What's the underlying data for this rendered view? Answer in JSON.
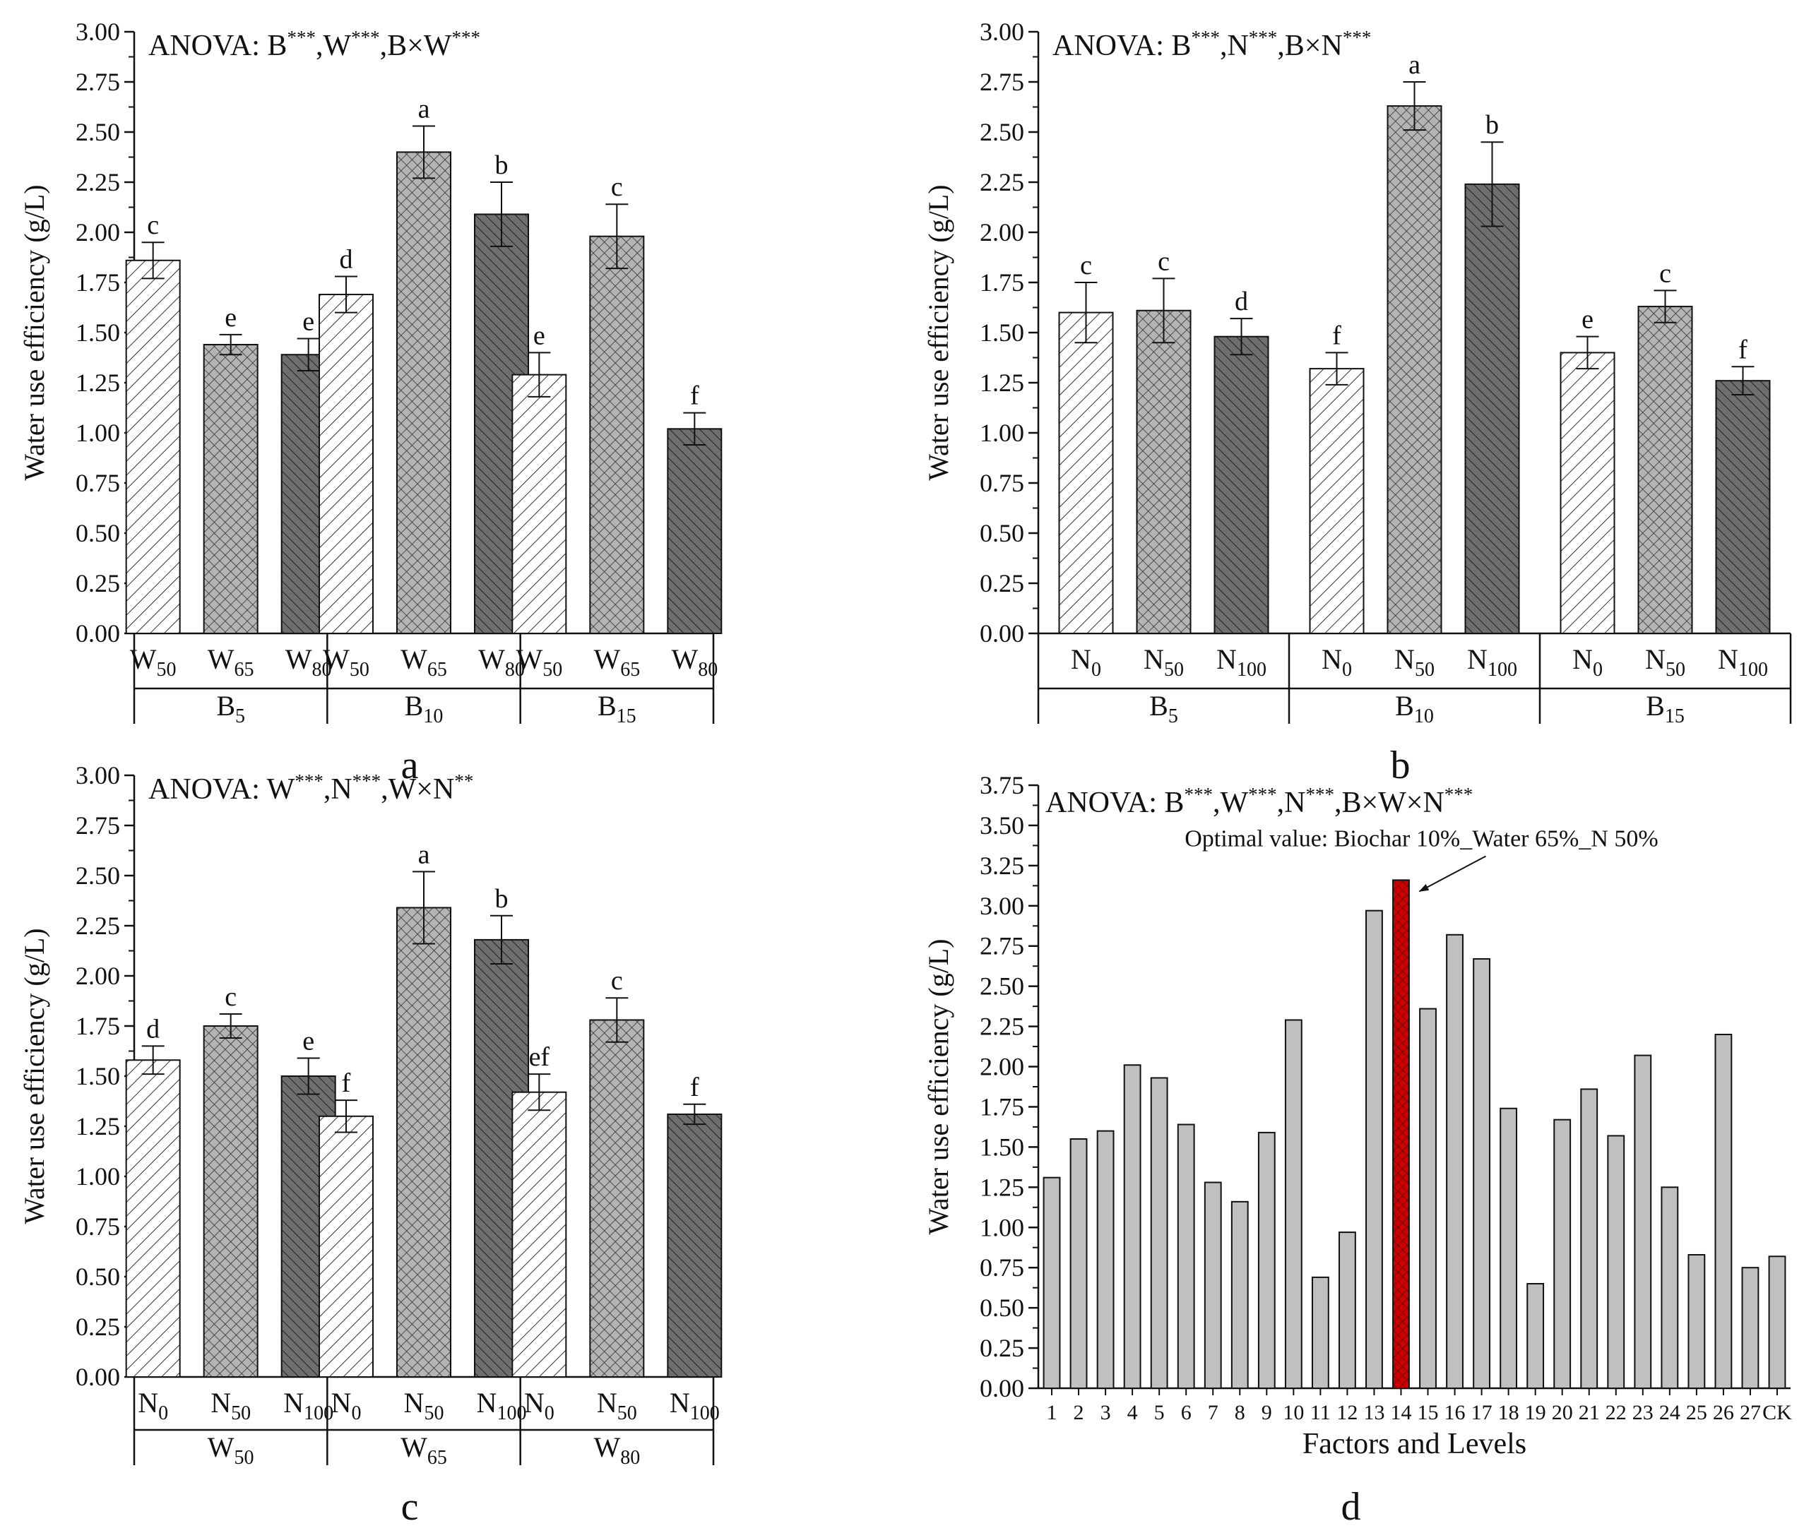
{
  "chart_data": [
    {
      "id": "a",
      "type": "bar",
      "panel_label": "a",
      "anova_prefix": "ANOVA: ",
      "anova_terms": [
        {
          "label": "B",
          "sig": "***"
        },
        {
          "label": "W",
          "sig": "***"
        },
        {
          "label": "B×W",
          "sig": "***"
        }
      ],
      "ylabel": "Water use efficiency  (g/L)",
      "ylim": [
        0,
        3.0
      ],
      "ytick_step": 0.25,
      "yticks": [
        "0.00",
        "0.25",
        "0.50",
        "0.75",
        "1.00",
        "1.25",
        "1.50",
        "1.75",
        "2.00",
        "2.25",
        "2.50",
        "2.75",
        "3.00"
      ],
      "groups": [
        {
          "base": "B",
          "sub": "5",
          "bars": [
            {
              "base": "W",
              "sub": "50",
              "value": 1.86,
              "err": 0.09,
              "letter": "c",
              "pattern": "diag"
            },
            {
              "base": "W",
              "sub": "65",
              "value": 1.44,
              "err": 0.05,
              "letter": "e",
              "pattern": "cross"
            },
            {
              "base": "W",
              "sub": "80",
              "value": 1.39,
              "err": 0.08,
              "letter": "e",
              "pattern": "dark"
            }
          ]
        },
        {
          "base": "B",
          "sub": "10",
          "bars": [
            {
              "base": "W",
              "sub": "50",
              "value": 1.69,
              "err": 0.09,
              "letter": "d",
              "pattern": "diag"
            },
            {
              "base": "W",
              "sub": "65",
              "value": 2.4,
              "err": 0.13,
              "letter": "a",
              "pattern": "cross"
            },
            {
              "base": "W",
              "sub": "80",
              "value": 2.09,
              "err": 0.16,
              "letter": "b",
              "pattern": "dark"
            }
          ]
        },
        {
          "base": "B",
          "sub": "15",
          "bars": [
            {
              "base": "W",
              "sub": "50",
              "value": 1.29,
              "err": 0.11,
              "letter": "e",
              "pattern": "diag"
            },
            {
              "base": "W",
              "sub": "65",
              "value": 1.98,
              "err": 0.16,
              "letter": "c",
              "pattern": "cross"
            },
            {
              "base": "W",
              "sub": "80",
              "value": 1.02,
              "err": 0.08,
              "letter": "f",
              "pattern": "dark"
            }
          ]
        }
      ]
    },
    {
      "id": "b",
      "type": "bar",
      "panel_label": "b",
      "anova_prefix": "ANOVA: ",
      "anova_terms": [
        {
          "label": "B",
          "sig": "***"
        },
        {
          "label": "N",
          "sig": "***"
        },
        {
          "label": "B×N",
          "sig": "***"
        }
      ],
      "ylabel": "Water use efficiency  (g/L)",
      "ylim": [
        0,
        3.0
      ],
      "ytick_step": 0.25,
      "yticks": [
        "0.00",
        "0.25",
        "0.50",
        "0.75",
        "1.00",
        "1.25",
        "1.50",
        "1.75",
        "2.00",
        "2.25",
        "2.50",
        "2.75",
        "3.00"
      ],
      "groups": [
        {
          "base": "B",
          "sub": "5",
          "bars": [
            {
              "base": "N",
              "sub": "0",
              "value": 1.6,
              "err": 0.15,
              "letter": "c",
              "pattern": "diag"
            },
            {
              "base": "N",
              "sub": "50",
              "value": 1.61,
              "err": 0.16,
              "letter": "c",
              "pattern": "cross"
            },
            {
              "base": "N",
              "sub": "100",
              "value": 1.48,
              "err": 0.09,
              "letter": "d",
              "pattern": "dark"
            }
          ]
        },
        {
          "base": "B",
          "sub": "10",
          "bars": [
            {
              "base": "N",
              "sub": "0",
              "value": 1.32,
              "err": 0.08,
              "letter": "f",
              "pattern": "diag"
            },
            {
              "base": "N",
              "sub": "50",
              "value": 2.63,
              "err": 0.12,
              "letter": "a",
              "pattern": "cross"
            },
            {
              "base": "N",
              "sub": "100",
              "value": 2.24,
              "err": 0.21,
              "letter": "b",
              "pattern": "dark"
            }
          ]
        },
        {
          "base": "B",
          "sub": "15",
          "bars": [
            {
              "base": "N",
              "sub": "0",
              "value": 1.4,
              "err": 0.08,
              "letter": "e",
              "pattern": "diag"
            },
            {
              "base": "N",
              "sub": "50",
              "value": 1.63,
              "err": 0.08,
              "letter": "c",
              "pattern": "cross"
            },
            {
              "base": "N",
              "sub": "100",
              "value": 1.26,
              "err": 0.07,
              "letter": "f",
              "pattern": "dark"
            }
          ]
        }
      ]
    },
    {
      "id": "c",
      "type": "bar",
      "panel_label": "c",
      "anova_prefix": "ANOVA: ",
      "anova_terms": [
        {
          "label": "W",
          "sig": "***"
        },
        {
          "label": "N",
          "sig": "***"
        },
        {
          "label": "W×N",
          "sig": "**"
        }
      ],
      "ylabel": "Water use efficiency  (g/L)",
      "ylim": [
        0,
        3.0
      ],
      "ytick_step": 0.25,
      "yticks": [
        "0.00",
        "0.25",
        "0.50",
        "0.75",
        "1.00",
        "1.25",
        "1.50",
        "1.75",
        "2.00",
        "2.25",
        "2.50",
        "2.75",
        "3.00"
      ],
      "groups": [
        {
          "base": "W",
          "sub": "50",
          "bars": [
            {
              "base": "N",
              "sub": "0",
              "value": 1.58,
              "err": 0.07,
              "letter": "d",
              "pattern": "diag"
            },
            {
              "base": "N",
              "sub": "50",
              "value": 1.75,
              "err": 0.06,
              "letter": "c",
              "pattern": "cross"
            },
            {
              "base": "N",
              "sub": "100",
              "value": 1.5,
              "err": 0.09,
              "letter": "e",
              "pattern": "dark"
            }
          ]
        },
        {
          "base": "W",
          "sub": "65",
          "bars": [
            {
              "base": "N",
              "sub": "0",
              "value": 1.3,
              "err": 0.08,
              "letter": "f",
              "pattern": "diag"
            },
            {
              "base": "N",
              "sub": "50",
              "value": 2.34,
              "err": 0.18,
              "letter": "a",
              "pattern": "cross"
            },
            {
              "base": "N",
              "sub": "100",
              "value": 2.18,
              "err": 0.12,
              "letter": "b",
              "pattern": "dark"
            }
          ]
        },
        {
          "base": "W",
          "sub": "80",
          "bars": [
            {
              "base": "N",
              "sub": "0",
              "value": 1.42,
              "err": 0.09,
              "letter": "ef",
              "pattern": "diag"
            },
            {
              "base": "N",
              "sub": "50",
              "value": 1.78,
              "err": 0.11,
              "letter": "c",
              "pattern": "cross"
            },
            {
              "base": "N",
              "sub": "100",
              "value": 1.31,
              "err": 0.05,
              "letter": "f",
              "pattern": "dark"
            }
          ]
        }
      ]
    },
    {
      "id": "d",
      "type": "bar",
      "panel_label": "d",
      "anova_prefix": "ANOVA: ",
      "anova_terms": [
        {
          "label": "B",
          "sig": "***"
        },
        {
          "label": "W",
          "sig": "***"
        },
        {
          "label": "N",
          "sig": "***"
        },
        {
          "label": "B×W×N",
          "sig": "***"
        }
      ],
      "ylabel": "Water use efficiency  (g/L)",
      "xlabel": "Factors and Levels",
      "ylim": [
        0,
        3.75
      ],
      "ytick_step": 0.25,
      "yticks": [
        "0.00",
        "0.25",
        "0.50",
        "0.75",
        "1.00",
        "1.25",
        "1.50",
        "1.75",
        "2.00",
        "2.25",
        "2.50",
        "2.75",
        "3.00",
        "3.25",
        "3.50",
        "3.75"
      ],
      "categories": [
        "1",
        "2",
        "3",
        "4",
        "5",
        "6",
        "7",
        "8",
        "9",
        "10",
        "11",
        "12",
        "13",
        "14",
        "15",
        "16",
        "17",
        "18",
        "19",
        "20",
        "21",
        "22",
        "23",
        "24",
        "25",
        "26",
        "27",
        "CK"
      ],
      "values": [
        1.31,
        1.55,
        1.6,
        2.01,
        1.93,
        1.64,
        1.28,
        1.16,
        1.59,
        2.29,
        0.69,
        0.97,
        2.97,
        3.16,
        2.36,
        2.82,
        2.67,
        1.74,
        0.65,
        1.67,
        1.86,
        1.57,
        2.07,
        1.25,
        0.83,
        2.2,
        0.75,
        0.82
      ],
      "highlight_index": 13,
      "annotation": "Optimal value: Biochar 10%_Water 65%_N 50%",
      "colors": {
        "bar": "#c0c0c0",
        "highlight": "#cc0000",
        "annotation": "#cc1111"
      }
    }
  ]
}
